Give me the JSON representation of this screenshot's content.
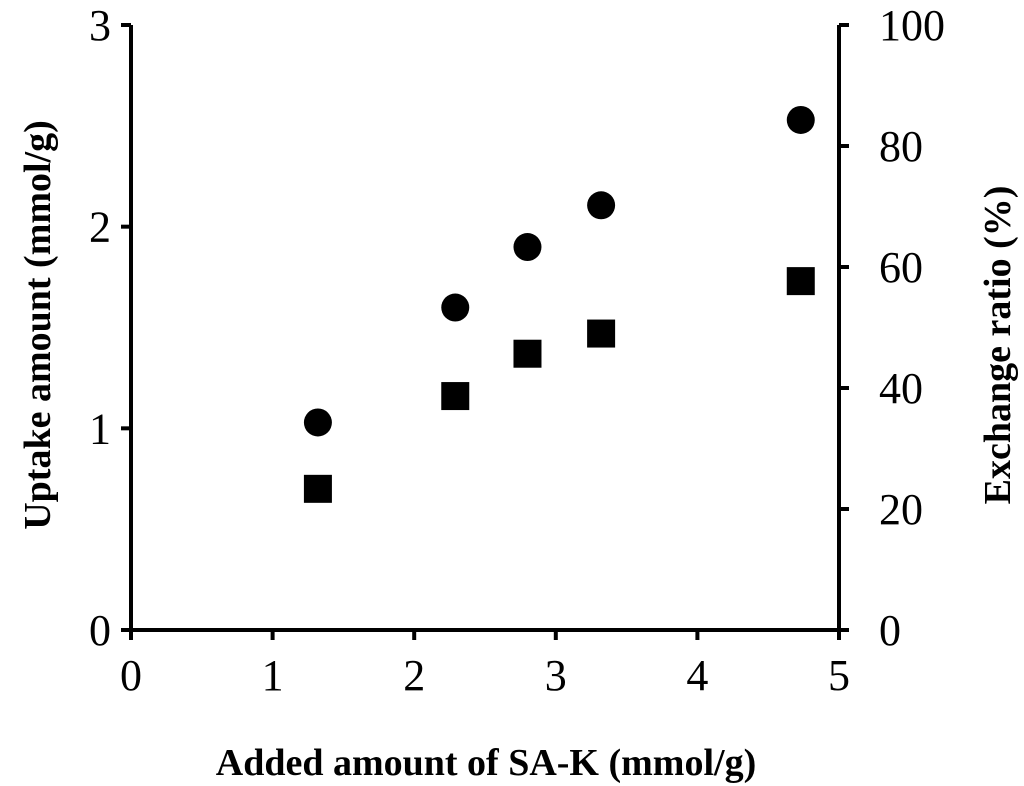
{
  "chart_data": {
    "type": "scatter",
    "title": "",
    "xlabel": "Added amount of SA-K (mmol/g)",
    "ylabel": "Uptake amount (mmol/g)",
    "y2label": "Exchange ratio (%)",
    "xlim": [
      0,
      5
    ],
    "ylim": [
      0,
      3
    ],
    "y2lim": [
      0,
      100
    ],
    "x_ticks": [
      "0",
      "1",
      "2",
      "3",
      "4",
      "5"
    ],
    "y_ticks": [
      "0",
      "1",
      "2",
      "3"
    ],
    "y2_ticks": [
      "0",
      "20",
      "40",
      "60",
      "80",
      "100"
    ],
    "grid": false,
    "legend": "none",
    "series": [
      {
        "marker": "circle",
        "axis": "right",
        "x": [
          1.32,
          2.29,
          2.8,
          3.32,
          4.73
        ],
        "y": [
          34.3,
          53.3,
          63.3,
          70.2,
          84.3
        ]
      },
      {
        "marker": "square",
        "axis": "left",
        "x": [
          1.32,
          2.29,
          2.8,
          3.32,
          4.73
        ],
        "y": [
          0.7,
          1.16,
          1.37,
          1.47,
          1.73
        ]
      }
    ]
  }
}
